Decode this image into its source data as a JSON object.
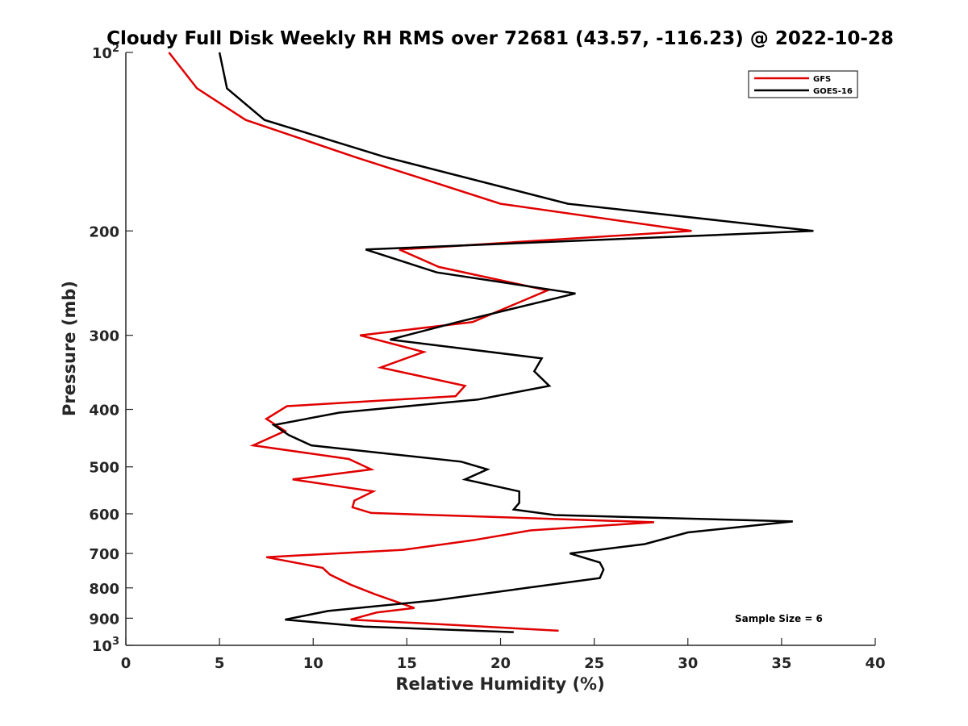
{
  "chart_data": {
    "type": "line",
    "title": "Cloudy Full Disk Weekly RH RMS over 72681 (43.57, -116.23) @ 2022-10-28",
    "xlabel": "Relative Humidity (%)",
    "ylabel": "Pressure (mb)",
    "xlim": [
      0,
      40
    ],
    "ylim": [
      100,
      1000
    ],
    "y_scale": "log",
    "y_reversed": true,
    "grid": false,
    "legend_position": "top-right",
    "x_ticks": [
      {
        "value": 0,
        "label": "0"
      },
      {
        "value": 5,
        "label": "5"
      },
      {
        "value": 10,
        "label": "10"
      },
      {
        "value": 15,
        "label": "15"
      },
      {
        "value": 20,
        "label": "20"
      },
      {
        "value": 25,
        "label": "25"
      },
      {
        "value": 30,
        "label": "30"
      },
      {
        "value": 35,
        "label": "35"
      },
      {
        "value": 40,
        "label": "40"
      }
    ],
    "y_ticks": [
      {
        "value": 100,
        "base": "10",
        "exp": "2"
      },
      {
        "value": 200,
        "label": "200"
      },
      {
        "value": 300,
        "label": "300"
      },
      {
        "value": 400,
        "label": "400"
      },
      {
        "value": 500,
        "label": "500"
      },
      {
        "value": 600,
        "label": "600"
      },
      {
        "value": 700,
        "label": "700"
      },
      {
        "value": 800,
        "label": "800"
      },
      {
        "value": 900,
        "label": "900"
      },
      {
        "value": 1000,
        "base": "10",
        "exp": "3"
      }
    ],
    "series": [
      {
        "name": "GFS",
        "color": "#e00000",
        "points": [
          [
            2.3,
            100
          ],
          [
            3.8,
            115
          ],
          [
            6.4,
            130
          ],
          [
            12.2,
            150
          ],
          [
            20.0,
            180
          ],
          [
            30.2,
            200
          ],
          [
            14.6,
            215
          ],
          [
            16.7,
            230
          ],
          [
            22.5,
            252
          ],
          [
            18.5,
            285
          ],
          [
            12.5,
            300
          ],
          [
            15.9,
            320
          ],
          [
            13.6,
            340
          ],
          [
            18.1,
            365
          ],
          [
            17.6,
            380
          ],
          [
            8.6,
            395
          ],
          [
            7.5,
            415
          ],
          [
            8.5,
            435
          ],
          [
            6.8,
            460
          ],
          [
            11.9,
            485
          ],
          [
            13.1,
            505
          ],
          [
            8.9,
            525
          ],
          [
            13.2,
            550
          ],
          [
            12.2,
            570
          ],
          [
            12.1,
            585
          ],
          [
            13.1,
            598
          ],
          [
            28.2,
            620
          ],
          [
            21.6,
            640
          ],
          [
            18.5,
            665
          ],
          [
            14.8,
            690
          ],
          [
            7.5,
            710
          ],
          [
            10.5,
            740
          ],
          [
            10.9,
            760
          ],
          [
            12.0,
            790
          ],
          [
            13.3,
            820
          ],
          [
            14.7,
            850
          ],
          [
            15.4,
            865
          ],
          [
            13.4,
            880
          ],
          [
            12.0,
            905
          ],
          [
            17.8,
            925
          ],
          [
            23.1,
            945
          ]
        ]
      },
      {
        "name": "GOES-16",
        "color": "#000000",
        "points": [
          [
            5.0,
            100
          ],
          [
            5.4,
            115
          ],
          [
            7.4,
            130
          ],
          [
            13.8,
            150
          ],
          [
            23.6,
            180
          ],
          [
            36.7,
            200
          ],
          [
            12.8,
            215
          ],
          [
            16.6,
            235
          ],
          [
            24.0,
            255
          ],
          [
            17.7,
            285
          ],
          [
            14.1,
            305
          ],
          [
            22.2,
            328
          ],
          [
            21.8,
            345
          ],
          [
            22.6,
            365
          ],
          [
            18.8,
            385
          ],
          [
            11.4,
            405
          ],
          [
            7.9,
            425
          ],
          [
            8.7,
            442
          ],
          [
            9.9,
            460
          ],
          [
            17.9,
            490
          ],
          [
            19.3,
            505
          ],
          [
            18.1,
            525
          ],
          [
            21.0,
            550
          ],
          [
            21.0,
            575
          ],
          [
            20.7,
            590
          ],
          [
            22.9,
            603
          ],
          [
            35.6,
            618
          ],
          [
            30.0,
            645
          ],
          [
            27.7,
            675
          ],
          [
            23.7,
            700
          ],
          [
            25.3,
            725
          ],
          [
            25.5,
            745
          ],
          [
            25.3,
            770
          ],
          [
            21.4,
            800
          ],
          [
            16.5,
            840
          ],
          [
            10.8,
            875
          ],
          [
            8.5,
            905
          ],
          [
            12.7,
            930
          ],
          [
            20.7,
            950
          ]
        ]
      }
    ],
    "annotations": [
      {
        "text": "Sample Size = 6"
      }
    ]
  }
}
